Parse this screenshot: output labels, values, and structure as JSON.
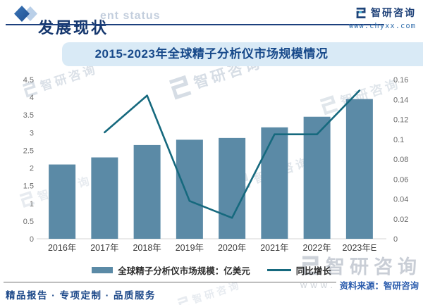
{
  "header": {
    "title": "发展现状",
    "subtitle_watermark": "ent status",
    "brand": {
      "name": "智研咨询",
      "website": "www.chyxx.com"
    }
  },
  "chart_data": {
    "type": "bar+line",
    "title": "2015-2023年全球精子分析仪市场规模情况",
    "categories": [
      "2016年",
      "2017年",
      "2018年",
      "2019年",
      "2020年",
      "2021年",
      "2022年",
      "2023年E"
    ],
    "series": [
      {
        "name": "全球精子分析仪市场规模：亿美元",
        "type": "bar",
        "axis": "left",
        "values": [
          2.1,
          2.3,
          2.65,
          2.8,
          2.85,
          3.15,
          3.45,
          3.95
        ],
        "color": "#5b8aa6"
      },
      {
        "name": "同比增长",
        "type": "line",
        "axis": "right",
        "values": [
          null,
          0.107,
          0.144,
          0.038,
          0.021,
          0.105,
          0.105,
          0.149
        ],
        "color": "#16697e"
      }
    ],
    "left_axis": {
      "min": 0,
      "max": 4.5,
      "step": 0.5,
      "ticks": [
        "0",
        "0.5",
        "1",
        "1.5",
        "2",
        "2.5",
        "3",
        "3.5",
        "4",
        "4.5"
      ]
    },
    "right_axis": {
      "min": 0,
      "max": 0.16,
      "step": 0.02,
      "ticks": [
        "0",
        "0.02",
        "0.04",
        "0.06",
        "0.08",
        "0.1",
        "0.12",
        "0.14",
        "0.16"
      ]
    },
    "grid": false,
    "legend_position": "bottom"
  },
  "footer": {
    "tagline": "精品报告 · 专项定制 · 品质服务",
    "source": "资料来源：智研咨询"
  },
  "watermark": {
    "logo_text": "智研咨询",
    "www_text": "www."
  }
}
